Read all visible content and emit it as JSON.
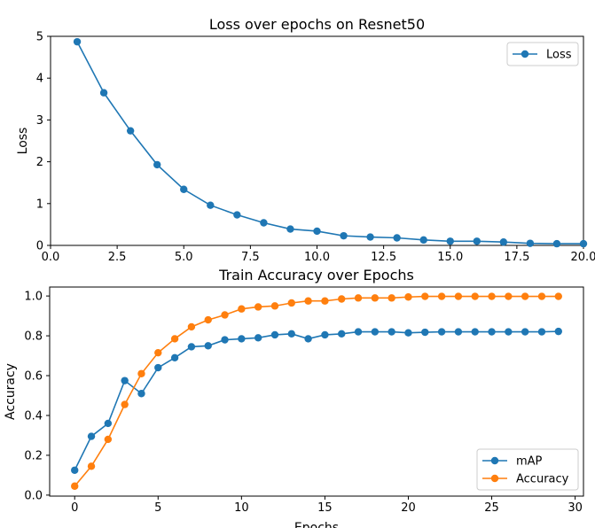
{
  "colors": {
    "blue": "#1f77b4",
    "orange": "#ff7f0e",
    "axes": "#000000",
    "legend_border": "#cccccc"
  },
  "chart_data": [
    {
      "type": "line",
      "title": "Loss over epochs on Resnet50",
      "xlabel": "",
      "ylabel": "Loss",
      "xlim": [
        0,
        20
      ],
      "ylim": [
        0,
        5
      ],
      "xticks": [
        "0.0",
        "2.5",
        "5.0",
        "7.5",
        "10.0",
        "12.5",
        "15.0",
        "17.5",
        "20.0"
      ],
      "yticks": [
        "0",
        "1",
        "2",
        "3",
        "4",
        "5"
      ],
      "grid": false,
      "legend_position": "top-right",
      "x": [
        1,
        2,
        3,
        4,
        5,
        6,
        7,
        8,
        9,
        10,
        11,
        12,
        13,
        14,
        15,
        16,
        17,
        18,
        19,
        20
      ],
      "series": [
        {
          "name": "Loss",
          "color": "#1f77b4",
          "marker": "circle",
          "values": [
            4.87,
            3.65,
            2.74,
            1.93,
            1.34,
            0.96,
            0.73,
            0.54,
            0.39,
            0.34,
            0.23,
            0.2,
            0.18,
            0.13,
            0.1,
            0.1,
            0.08,
            0.05,
            0.04,
            0.04
          ]
        }
      ]
    },
    {
      "type": "line",
      "title": "Train Accuracy over Epochs",
      "xlabel": "Epochs",
      "ylabel": "Accuracy",
      "xlim": [
        -1.5,
        30.5
      ],
      "ylim": [
        -0.005,
        1.045
      ],
      "xticks": [
        "0",
        "5",
        "10",
        "15",
        "20",
        "25",
        "30"
      ],
      "yticks": [
        "0.0",
        "0.2",
        "0.4",
        "0.6",
        "0.8",
        "1.0"
      ],
      "grid": false,
      "legend_position": "bottom-right",
      "x": [
        0,
        1,
        2,
        3,
        4,
        5,
        6,
        7,
        8,
        9,
        10,
        11,
        12,
        13,
        14,
        15,
        16,
        17,
        18,
        19,
        20,
        21,
        22,
        23,
        24,
        25,
        26,
        27,
        28,
        29
      ],
      "series": [
        {
          "name": "mAP",
          "color": "#1f77b4",
          "marker": "circle",
          "values": [
            0.125,
            0.295,
            0.36,
            0.575,
            0.51,
            0.64,
            0.69,
            0.745,
            0.75,
            0.78,
            0.785,
            0.79,
            0.805,
            0.81,
            0.785,
            0.805,
            0.81,
            0.82,
            0.82,
            0.82,
            0.815,
            0.818,
            0.82,
            0.82,
            0.82,
            0.82,
            0.82,
            0.82,
            0.82,
            0.822
          ]
        },
        {
          "name": "Accuracy",
          "color": "#ff7f0e",
          "marker": "circle",
          "values": [
            0.045,
            0.145,
            0.28,
            0.455,
            0.61,
            0.715,
            0.785,
            0.845,
            0.88,
            0.905,
            0.935,
            0.945,
            0.95,
            0.965,
            0.975,
            0.975,
            0.985,
            0.99,
            0.99,
            0.99,
            0.995,
            0.998,
            0.998,
            0.998,
            0.998,
            0.998,
            0.998,
            0.998,
            0.998,
            0.998
          ]
        }
      ]
    }
  ]
}
